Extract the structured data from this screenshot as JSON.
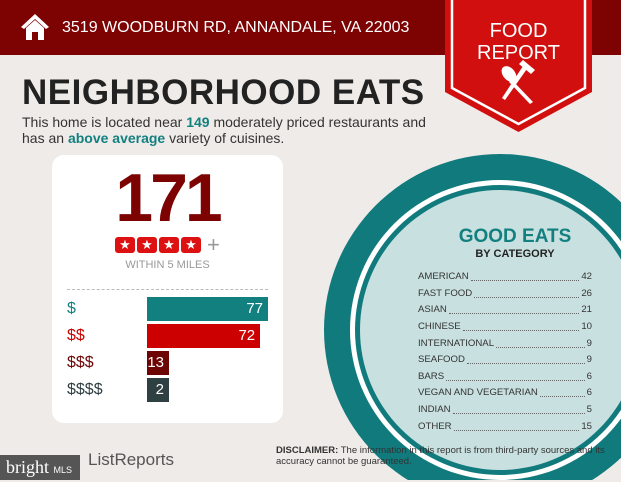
{
  "header": {
    "address": "3519 WOODBURN RD, ANNANDALE, VA 22003",
    "home_icon": "house-icon"
  },
  "ribbon": {
    "line1": "FOOD",
    "line2": "REPORT",
    "icon": "spoon-fork-icon"
  },
  "title": "NEIGHBORHOOD EATS",
  "subtitle": {
    "pre": "This home is located near ",
    "count": "149",
    "mid": " moderately priced restaurants and has an ",
    "variety": "above average",
    "post": " variety of cuisines."
  },
  "summary": {
    "total": "171",
    "stars": 4,
    "plus": "+",
    "within": "WITHIN 5 MILES"
  },
  "price_levels": [
    {
      "label": "$",
      "value": 77,
      "display": "77",
      "color": "#138080"
    },
    {
      "label": "$$",
      "value": 72,
      "display": "72",
      "color": "#cc0000"
    },
    {
      "label": "$$$",
      "value": 13,
      "display": "13",
      "color": "#6e0505"
    },
    {
      "label": "$$$$",
      "value": 2,
      "display": "2",
      "color": "#2f4042"
    }
  ],
  "categories": {
    "title": "GOOD EATS",
    "subtitle": "BY CATEGORY",
    "items": [
      {
        "name": "AMERICAN",
        "count": "42"
      },
      {
        "name": "FAST FOOD",
        "count": "26"
      },
      {
        "name": "ASIAN",
        "count": "21"
      },
      {
        "name": "CHINESE",
        "count": "10"
      },
      {
        "name": "INTERNATIONAL",
        "count": "9"
      },
      {
        "name": "SEAFOOD",
        "count": "9"
      },
      {
        "name": "BARS",
        "count": "6"
      },
      {
        "name": "VEGAN AND VEGETARIAN",
        "count": "6"
      },
      {
        "name": "INDIAN",
        "count": "5"
      },
      {
        "name": "OTHER",
        "count": "15"
      }
    ]
  },
  "footer": {
    "disclaimer_label": "DISCLAIMER:",
    "disclaimer": " The information in this report is from third-party sources and its accuracy cannot be guaranteed.",
    "brand": "ListReports",
    "watermark": "bright",
    "watermark_suffix": "MLS"
  },
  "colors": {
    "header": "#7d0303",
    "accent_red": "#cc0000",
    "teal": "#138080"
  }
}
